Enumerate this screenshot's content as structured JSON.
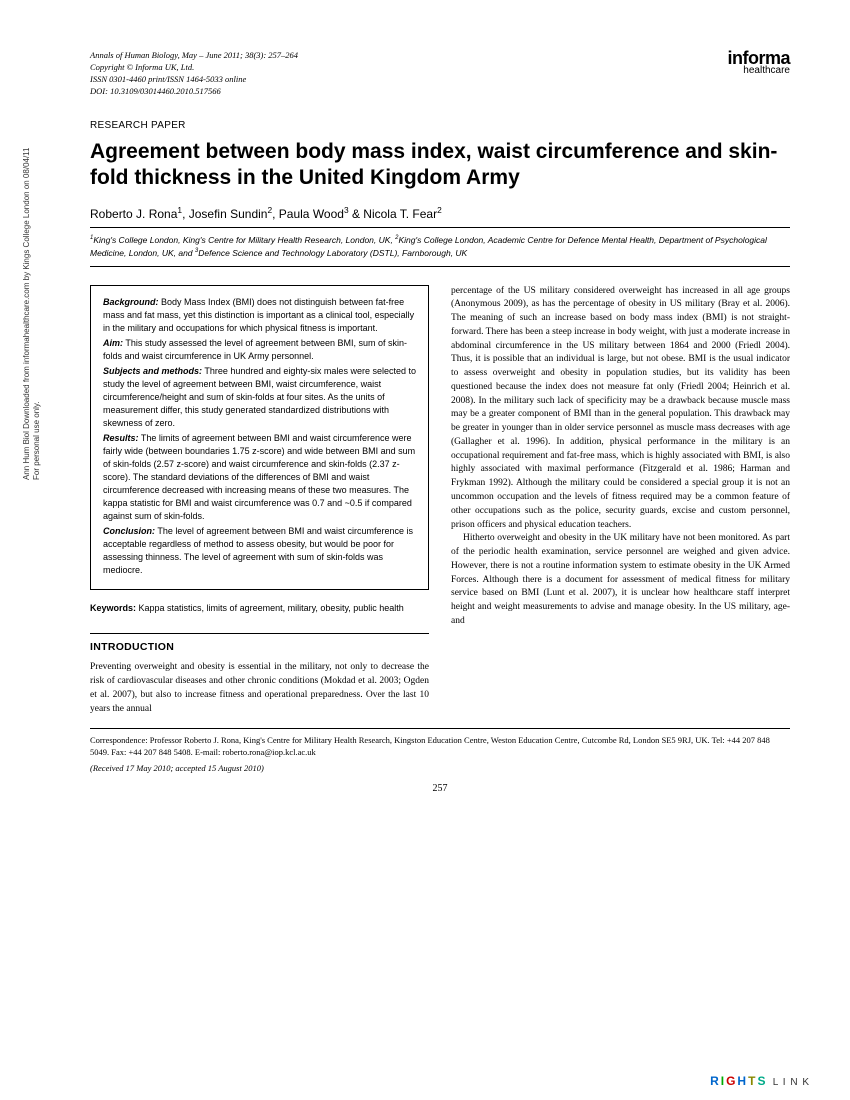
{
  "sidebar": {
    "line1": "Ann Hum Biol Downloaded from informahealthcare.com by Kings College London on 08/04/11",
    "line2": "For personal use only."
  },
  "journal": {
    "citation": "Annals of Human Biology, May – June 2011; 38(3): 257–264",
    "copyright": "Copyright © Informa UK, Ltd.",
    "issn": "ISSN 0301-4460 print/ISSN 1464-5033 online",
    "doi": "DOI: 10.3109/03014460.2010.517566"
  },
  "publisher": {
    "name": "informa",
    "sub": "healthcare"
  },
  "section_label": "RESEARCH PAPER",
  "title": "Agreement between body mass index, waist circumference and skin-fold thickness in the United Kingdom Army",
  "authors_html": "Roberto J. Rona<sup>1</sup>, Josefin Sundin<sup>2</sup>, Paula Wood<sup>3</sup> & Nicola T. Fear<sup>2</sup>",
  "affiliations_html": "<sup>1</sup>King's College London, King's Centre for Military Health Research, London, UK, <sup>2</sup>King's College London, Academic Centre for Defence Mental Health, Department of Psychological Medicine, London, UK, and <sup>3</sup>Defence Science and Technology Laboratory (DSTL), Farnborough, UK",
  "abstract": {
    "background": "Body Mass Index (BMI) does not distinguish between fat-free mass and fat mass, yet this distinction is important as a clinical tool, especially in the military and occupations for which physical fitness is important.",
    "aim": "This study assessed the level of agreement between BMI, sum of skin-folds and waist circumference in UK Army personnel.",
    "methods": "Three hundred and eighty-six males were selected to study the level of agreement between BMI, waist circumference, waist circumference/height and sum of skin-folds at four sites. As the units of measurement differ, this study generated standardized distributions with skewness of zero.",
    "results": "The limits of agreement between BMI and waist circumference were fairly wide (between boundaries 1.75 z-score) and wide between BMI and sum of skin-folds (2.57 z-score) and waist circumference and skin-folds (2.37 z-score). The standard deviations of the differences of BMI and waist circumference decreased with increasing means of these two measures. The kappa statistic for BMI and waist circumference was 0.7 and ~0.5 if compared against sum of skin-folds.",
    "conclusion": "The level of agreement between BMI and waist circumference is acceptable regardless of method to assess obesity, but would be poor for assessing thinness. The level of agreement with sum of skin-folds was mediocre."
  },
  "keywords": "Kappa statistics, limits of agreement, military, obesity, public health",
  "intro_heading": "INTRODUCTION",
  "body": {
    "left": "Preventing overweight and obesity is essential in the military, not only to decrease the risk of cardiovascular diseases and other chronic conditions (Mokdad et al. 2003; Ogden et al. 2007), but also to increase fitness and operational preparedness. Over the last 10 years the annual",
    "right1": "percentage of the US military considered overweight has increased in all age groups (Anonymous 2009), as has the percentage of obesity in US military (Bray et al. 2006). The meaning of such an increase based on body mass index (BMI) is not straight-forward. There has been a steep increase in body weight, with just a moderate increase in abdominal circumference in the US military between 1864 and 2000 (Friedl 2004). Thus, it is possible that an individual is large, but not obese. BMI is the usual indicator to assess overweight and obesity in population studies, but its validity has been questioned because the index does not measure fat only (Friedl 2004; Heinrich et al. 2008). In the military such lack of specificity may be a drawback because muscle mass may be a greater component of BMI than in the general population. This drawback may be greater in younger than in older service personnel as muscle mass decreases with age (Gallagher et al. 1996). In addition, physical performance in the military is an occupational requirement and fat-free mass, which is highly associated with BMI, is also highly associated with maximal performance (Fitzgerald et al. 1986; Harman and Frykman 1992). Although the military could be considered a special group it is not an uncommon occupation and the levels of fitness required may be a common feature of other occupations such as the police, security guards, excise and custom personnel, prison officers and physical education teachers.",
    "right2": "Hitherto overweight and obesity in the UK military have not been monitored. As part of the periodic health examination, service personnel are weighed and given advice. However, there is not a routine information system to estimate obesity in the UK Armed Forces. Although there is a document for assessment of medical fitness for military service based on BMI (Lunt et al. 2007), it is unclear how healthcare staff interpret height and weight measurements to advise and manage obesity. In the US military, age- and"
  },
  "correspondence": "Correspondence: Professor Roberto J. Rona, King's Centre for Military Health Research, Kingston Education Centre, Weston Education Centre, Cutcombe Rd, London SE5 9RJ, UK. Tel: +44 207 848 5049. Fax: +44 207 848 5408. E-mail: roberto.rona@iop.kcl.ac.uk",
  "received": "(Received 17 May 2010; accepted 15 August 2010)",
  "page_number": "257",
  "rights": {
    "brand": "RIGHTS",
    "link": "L I N K"
  }
}
